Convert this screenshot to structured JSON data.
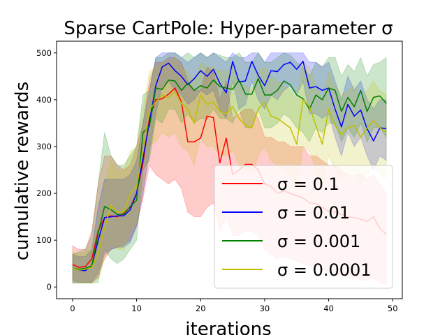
{
  "chart_data": {
    "type": "line",
    "title": "Sparse CartPole: Hyper-parameter σ",
    "xlabel": "iterations",
    "ylabel": "cumulative rewards",
    "xlim": [
      -2.5,
      51.5
    ],
    "ylim": [
      -25,
      525
    ],
    "xticks": [
      0,
      10,
      20,
      30,
      40,
      50
    ],
    "yticks": [
      0,
      100,
      200,
      300,
      400,
      500
    ],
    "grid": false,
    "legend_position": "lower-right",
    "shaded_band": "mean ± spread (semi-transparent)",
    "x": [
      0,
      1,
      2,
      3,
      4,
      5,
      6,
      7,
      8,
      9,
      10,
      11,
      12,
      13,
      14,
      15,
      16,
      17,
      18,
      19,
      20,
      21,
      22,
      23,
      24,
      25,
      26,
      27,
      28,
      29,
      30,
      31,
      32,
      33,
      34,
      35,
      36,
      37,
      38,
      39,
      40,
      41,
      42,
      43,
      44,
      45,
      46,
      47,
      48,
      49
    ],
    "series": [
      {
        "name": "σ = 0.1",
        "color": "#ff0000",
        "values": [
          48,
          42,
          44,
          60,
          120,
          148,
          152,
          150,
          158,
          170,
          200,
          265,
          360,
          400,
          402,
          412,
          425,
          395,
          310,
          310,
          318,
          365,
          362,
          265,
          318,
          240,
          250,
          262,
          262,
          250,
          220,
          215,
          200,
          205,
          200,
          195,
          190,
          180,
          178,
          170,
          162,
          160,
          155,
          150,
          148,
          145,
          140,
          150,
          125,
          112
        ],
        "lower": [
          15,
          10,
          10,
          10,
          20,
          60,
          80,
          85,
          90,
          100,
          130,
          190,
          260,
          240,
          230,
          220,
          230,
          210,
          160,
          150,
          150,
          170,
          180,
          120,
          150,
          110,
          110,
          120,
          120,
          110,
          80,
          70,
          60,
          65,
          60,
          55,
          50,
          45,
          45,
          40,
          30,
          25,
          25,
          20,
          20,
          15,
          15,
          20,
          10,
          5
        ],
        "upper": [
          88,
          80,
          80,
          120,
          220,
          280,
          280,
          260,
          250,
          260,
          300,
          350,
          440,
          480,
          480,
          490,
          490,
          480,
          440,
          420,
          420,
          470,
          460,
          400,
          440,
          360,
          370,
          380,
          380,
          360,
          320,
          320,
          310,
          310,
          300,
          300,
          300,
          280,
          280,
          270,
          260,
          260,
          250,
          240,
          240,
          240,
          230,
          240,
          220,
          200
        ]
      },
      {
        "name": "σ = 0.01",
        "color": "#0000ff",
        "values": [
          40,
          36,
          35,
          45,
          100,
          148,
          150,
          152,
          152,
          165,
          200,
          275,
          352,
          430,
          470,
          478,
          462,
          450,
          432,
          445,
          462,
          450,
          465,
          435,
          415,
          482,
          438,
          440,
          482,
          452,
          430,
          462,
          460,
          475,
          480,
          465,
          482,
          425,
          428,
          420,
          425,
          380,
          342,
          390,
          365,
          378,
          338,
          312,
          340,
          338
        ],
        "lower": [
          10,
          10,
          10,
          10,
          30,
          70,
          80,
          85,
          85,
          95,
          130,
          200,
          290,
          370,
          430,
          440,
          420,
          410,
          390,
          400,
          420,
          410,
          420,
          380,
          360,
          440,
          380,
          390,
          440,
          400,
          380,
          410,
          400,
          420,
          430,
          410,
          440,
          370,
          370,
          360,
          370,
          320,
          280,
          330,
          300,
          320,
          280,
          250,
          280,
          270
        ],
        "upper": [
          70,
          65,
          65,
          80,
          170,
          230,
          230,
          230,
          230,
          240,
          270,
          350,
          420,
          490,
          500,
          500,
          500,
          490,
          480,
          490,
          500,
          490,
          500,
          490,
          480,
          500,
          490,
          490,
          500,
          500,
          480,
          500,
          500,
          500,
          500,
          500,
          500,
          480,
          480,
          470,
          480,
          440,
          400,
          450,
          420,
          440,
          400,
          380,
          400,
          400
        ]
      },
      {
        "name": "σ = 0.001",
        "color": "#008000",
        "values": [
          40,
          38,
          40,
          45,
          115,
          172,
          165,
          155,
          155,
          172,
          185,
          330,
          342,
          425,
          422,
          442,
          440,
          420,
          435,
          420,
          430,
          425,
          442,
          428,
          425,
          422,
          442,
          412,
          412,
          445,
          410,
          410,
          420,
          440,
          432,
          410,
          402,
          380,
          410,
          400,
          425,
          420,
          375,
          405,
          385,
          420,
          375,
          405,
          408,
          392
        ],
        "lower": [
          8,
          8,
          8,
          8,
          10,
          80,
          60,
          50,
          60,
          80,
          100,
          250,
          270,
          360,
          350,
          380,
          380,
          350,
          370,
          350,
          360,
          360,
          380,
          360,
          360,
          350,
          380,
          340,
          340,
          380,
          340,
          340,
          350,
          370,
          360,
          340,
          330,
          310,
          340,
          330,
          350,
          350,
          310,
          340,
          320,
          350,
          310,
          340,
          340,
          320
        ],
        "upper": [
          70,
          75,
          80,
          110,
          220,
          330,
          280,
          260,
          260,
          280,
          300,
          410,
          420,
          490,
          490,
          500,
          500,
          490,
          500,
          490,
          500,
          490,
          500,
          495,
          490,
          490,
          500,
          480,
          480,
          500,
          480,
          480,
          490,
          500,
          495,
          480,
          470,
          450,
          480,
          470,
          490,
          490,
          450,
          475,
          460,
          490,
          450,
          475,
          480,
          490
        ]
      },
      {
        "name": "σ = 0.0001",
        "color": "#bfbf00",
        "values": [
          40,
          36,
          38,
          42,
          70,
          125,
          175,
          160,
          160,
          200,
          215,
          290,
          380,
          395,
          410,
          405,
          418,
          392,
          380,
          350,
          410,
          390,
          395,
          375,
          370,
          385,
          360,
          345,
          340,
          380,
          395,
          365,
          360,
          350,
          340,
          305,
          400,
          385,
          345,
          305,
          380,
          345,
          325,
          340,
          345,
          320,
          340,
          355,
          340,
          330
        ],
        "lower": [
          8,
          8,
          8,
          8,
          20,
          60,
          90,
          80,
          80,
          120,
          140,
          210,
          300,
          310,
          330,
          320,
          330,
          300,
          290,
          260,
          320,
          300,
          300,
          280,
          280,
          290,
          260,
          250,
          240,
          280,
          300,
          270,
          260,
          250,
          240,
          210,
          300,
          290,
          250,
          210,
          280,
          250,
          230,
          240,
          250,
          220,
          240,
          260,
          240,
          230
        ],
        "upper": [
          75,
          70,
          75,
          80,
          140,
          220,
          270,
          250,
          250,
          290,
          300,
          380,
          460,
          470,
          480,
          480,
          490,
          470,
          460,
          440,
          480,
          470,
          470,
          460,
          460,
          470,
          440,
          430,
          420,
          460,
          470,
          450,
          440,
          430,
          420,
          400,
          480,
          470,
          430,
          400,
          460,
          430,
          410,
          420,
          430,
          400,
          420,
          440,
          420,
          410
        ]
      }
    ]
  }
}
